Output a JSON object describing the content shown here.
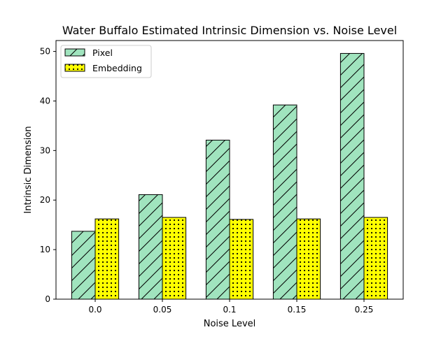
{
  "chart_data": {
    "type": "bar",
    "title": "Water Buffalo Estimated Intrinsic Dimension vs. Noise Level",
    "xlabel": "Noise Level",
    "ylabel": "Intrinsic Dimension",
    "categories": [
      "0.0",
      "0.05",
      "0.1",
      "0.15",
      "0.25"
    ],
    "ylim": [
      0,
      52.2
    ],
    "yticks": [
      0,
      10,
      20,
      30,
      40,
      50
    ],
    "grid": false,
    "legend_position": "top-left",
    "series": [
      {
        "name": "Pixel",
        "values": [
          13.7,
          21.1,
          32.1,
          39.2,
          49.6
        ],
        "color": "#a0e4be",
        "hatch": "diagonal"
      },
      {
        "name": "Embedding",
        "values": [
          16.2,
          16.5,
          16.1,
          16.2,
          16.5
        ],
        "color": "#ffff00",
        "hatch": "dots"
      }
    ]
  }
}
